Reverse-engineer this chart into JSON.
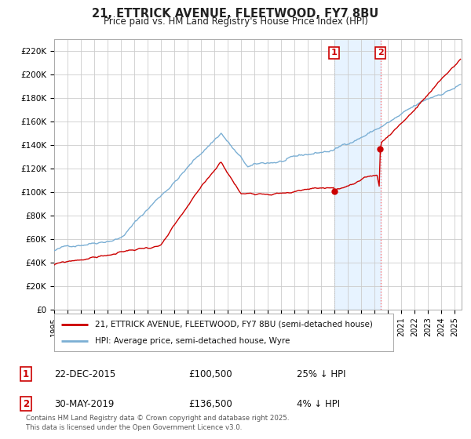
{
  "title": "21, ETTRICK AVENUE, FLEETWOOD, FY7 8BU",
  "subtitle": "Price paid vs. HM Land Registry's House Price Index (HPI)",
  "background_color": "#ffffff",
  "plot_bg_color": "#ffffff",
  "grid_color": "#cccccc",
  "hpi_color": "#7bafd4",
  "price_color": "#cc0000",
  "legend_line1": "21, ETTRICK AVENUE, FLEETWOOD, FY7 8BU (semi-detached house)",
  "legend_line2": "HPI: Average price, semi-detached house, Wyre",
  "footer": "Contains HM Land Registry data © Crown copyright and database right 2025.\nThis data is licensed under the Open Government Licence v3.0.",
  "ylim": [
    0,
    230000
  ],
  "yticks": [
    0,
    20000,
    40000,
    60000,
    80000,
    100000,
    120000,
    140000,
    160000,
    180000,
    200000,
    220000
  ],
  "sale1_year": 2015.97,
  "sale2_year": 2019.42,
  "sale1_price": 100500,
  "sale2_price": 136500,
  "yr_min": 1995,
  "yr_max": 2025.5
}
